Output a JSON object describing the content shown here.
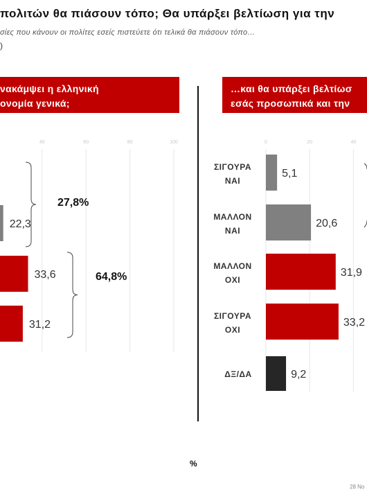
{
  "header": {
    "title": "πολιτών θα πιάσουν τόπο; Θα υπάρξει βελτίωση για την",
    "subtitle": "σίες που κάνουν οι πολίτες εσείς  πιστεύετε ότι τελικά θα πιάσουν τόπο…",
    "base": ")"
  },
  "panels": {
    "left_line1": "νακάμψει η ελληνική",
    "left_line2": "ονομία γενικά;",
    "right_line1": "…και θα υπάρξει βελτίωσ",
    "right_line2": "εσάς προσωπικά και την"
  },
  "unit_label": "%",
  "date": "28 No",
  "colors": {
    "red": "#c00000",
    "grey": "#808080",
    "dark": "#262626",
    "grid": "#e6e6e6",
    "tick": "#c8c8c8"
  },
  "chart_data": [
    {
      "type": "bar",
      "orientation": "horizontal",
      "title": "νακάμψει η ελληνική ονομία γενικά;",
      "xlim": [
        0,
        100
      ],
      "ticks": [
        "40",
        "60",
        "80",
        "100"
      ],
      "bars": [
        {
          "value": 22.3,
          "label": "22,3",
          "color": "#808080"
        },
        {
          "value": 33.6,
          "label": "33,6",
          "color": "#c00000"
        },
        {
          "value": 31.2,
          "label": "31,2",
          "color": "#c00000"
        }
      ],
      "groups": [
        {
          "label": "27,8%"
        },
        {
          "label": "64,8%"
        }
      ]
    },
    {
      "type": "bar",
      "orientation": "horizontal",
      "title": "…και θα υπάρξει βελτίωσ εσάς προσωπικά και την",
      "xlim": [
        0,
        100
      ],
      "ticks": [
        "0",
        "20",
        "40"
      ],
      "categories": [
        [
          "ΣΙΓΟΥΡΑ",
          "ΝΑΙ"
        ],
        [
          "ΜΑΛΛΟΝ",
          "ΝΑΙ"
        ],
        [
          "ΜΑΛΛΟΝ",
          "ΟΧΙ"
        ],
        [
          "ΣΙΓΟΥΡΑ",
          "ΟΧΙ"
        ],
        [
          "ΔΞ/ΔΑ"
        ]
      ],
      "bars": [
        {
          "value": 5.1,
          "label": "5,1",
          "color": "#808080"
        },
        {
          "value": 20.6,
          "label": "20,6",
          "color": "#808080"
        },
        {
          "value": 31.9,
          "label": "31,9",
          "color": "#c00000"
        },
        {
          "value": 33.2,
          "label": "33,2",
          "color": "#c00000"
        },
        {
          "value": 9.2,
          "label": "9,2",
          "color": "#262626"
        }
      ]
    }
  ]
}
